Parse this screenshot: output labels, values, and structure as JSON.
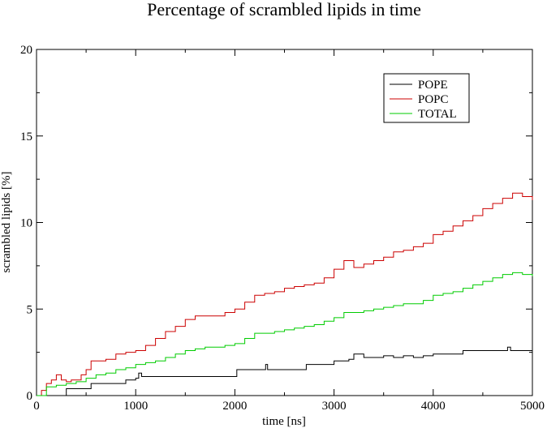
{
  "chart_data": {
    "type": "line",
    "title": "Percentage of scrambled lipids in time",
    "xlabel": "time [ns]",
    "ylabel": "scrambled lipids [%]",
    "xlim": [
      0,
      5000
    ],
    "ylim": [
      0,
      20
    ],
    "x_ticks": [
      0,
      1000,
      2000,
      3000,
      4000,
      5000
    ],
    "y_ticks": [
      0,
      5,
      10,
      15,
      20
    ],
    "grid": false,
    "legend_position": "top-right",
    "series": [
      {
        "name": "POPE",
        "color": "#000000",
        "x": [
          0,
          100,
          250,
          300,
          500,
          550,
          800,
          900,
          1000,
          1030,
          1060,
          1500,
          2000,
          2020,
          2300,
          2310,
          2330,
          2700,
          2720,
          2900,
          3000,
          3150,
          3200,
          3300,
          3400,
          3500,
          3600,
          3700,
          3800,
          3900,
          4000,
          4100,
          4300,
          4500,
          4700,
          4750,
          4780,
          5000
        ],
        "y": [
          0,
          0,
          0,
          0.4,
          0.4,
          0.7,
          0.7,
          0.9,
          1.0,
          1.3,
          1.1,
          1.1,
          1.1,
          1.5,
          1.5,
          1.8,
          1.5,
          1.5,
          1.8,
          1.8,
          2.0,
          2.1,
          2.4,
          2.2,
          2.2,
          2.3,
          2.2,
          2.3,
          2.2,
          2.3,
          2.4,
          2.4,
          2.6,
          2.6,
          2.6,
          2.8,
          2.6,
          2.6
        ]
      },
      {
        "name": "POPC",
        "color": "#cc0000",
        "x": [
          0,
          50,
          100,
          150,
          200,
          250,
          300,
          350,
          400,
          450,
          500,
          550,
          600,
          700,
          800,
          900,
          1000,
          1100,
          1200,
          1300,
          1400,
          1500,
          1600,
          1700,
          1800,
          1900,
          2000,
          2100,
          2200,
          2300,
          2400,
          2500,
          2600,
          2700,
          2800,
          2900,
          3000,
          3100,
          3200,
          3300,
          3400,
          3500,
          3600,
          3700,
          3800,
          3900,
          4000,
          4100,
          4200,
          4300,
          4400,
          4500,
          4600,
          4700,
          4800,
          4900,
          5000
        ],
        "y": [
          0,
          0.3,
          0.7,
          0.9,
          1.2,
          0.9,
          0.8,
          0.9,
          0.9,
          1.2,
          1.5,
          2.0,
          2.0,
          2.1,
          2.4,
          2.5,
          2.6,
          2.9,
          3.3,
          3.7,
          4.0,
          4.4,
          4.6,
          4.6,
          4.6,
          4.8,
          5.0,
          5.4,
          5.8,
          5.9,
          6.0,
          6.2,
          6.3,
          6.4,
          6.5,
          6.8,
          7.3,
          7.8,
          7.4,
          7.6,
          7.8,
          8.0,
          8.3,
          8.4,
          8.6,
          8.8,
          9.3,
          9.5,
          9.8,
          10.1,
          10.4,
          10.8,
          11.1,
          11.4,
          11.7,
          11.5,
          11.3
        ]
      },
      {
        "name": "TOTAL",
        "color": "#00cc00",
        "x": [
          0,
          100,
          200,
          300,
          400,
          500,
          600,
          700,
          800,
          900,
          1000,
          1100,
          1200,
          1300,
          1400,
          1500,
          1600,
          1700,
          1800,
          1900,
          2000,
          2100,
          2200,
          2300,
          2400,
          2500,
          2600,
          2700,
          2800,
          2900,
          3000,
          3100,
          3200,
          3300,
          3400,
          3500,
          3600,
          3700,
          3800,
          3900,
          4000,
          4100,
          4200,
          4300,
          4400,
          4500,
          4600,
          4700,
          4800,
          4900,
          5000
        ],
        "y": [
          0,
          0.5,
          0.6,
          0.7,
          0.8,
          1.0,
          1.2,
          1.3,
          1.5,
          1.6,
          1.8,
          1.9,
          2.0,
          2.2,
          2.4,
          2.6,
          2.7,
          2.8,
          2.8,
          2.9,
          3.0,
          3.3,
          3.6,
          3.6,
          3.7,
          3.8,
          3.9,
          4.0,
          4.1,
          4.3,
          4.5,
          4.8,
          4.8,
          4.9,
          5.0,
          5.1,
          5.2,
          5.3,
          5.3,
          5.5,
          5.8,
          5.9,
          6.0,
          6.2,
          6.4,
          6.6,
          6.8,
          7.0,
          7.1,
          7.0,
          6.9
        ]
      }
    ]
  }
}
